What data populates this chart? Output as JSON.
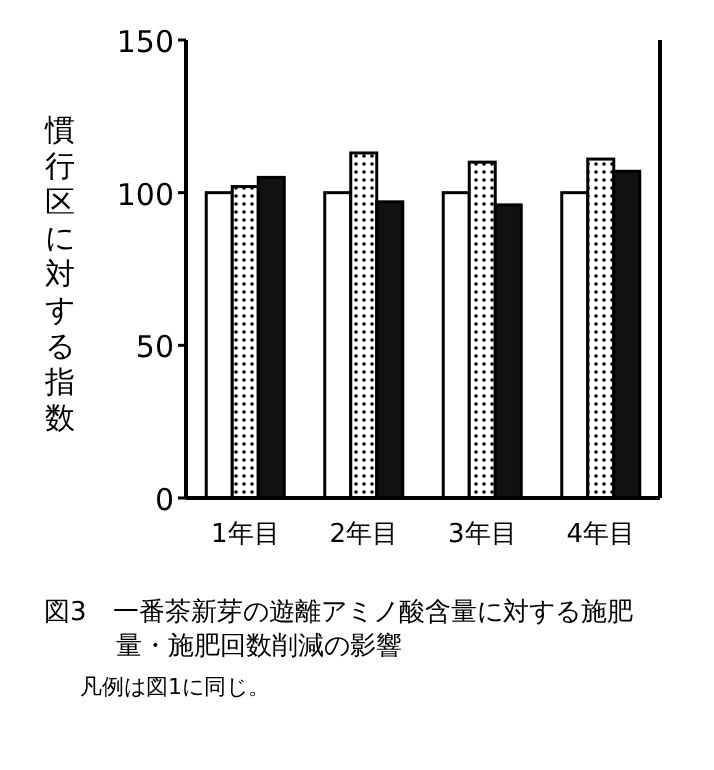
{
  "chart_data": {
    "type": "bar",
    "title": "図3　一番茶新芽の遊離アミノ酸含量に対する施肥量・施肥回数削減の影響",
    "ylabel": "慣行区に対する指数",
    "categories": [
      "1年目",
      "2年目",
      "3年目",
      "4年目"
    ],
    "series": [
      {
        "color": "#ffffff",
        "values": [
          100,
          100,
          100,
          100
        ]
      },
      {
        "color": "#000000",
        "values": [
          102,
          113,
          110,
          111
        ]
      },
      {
        "color": "#111111",
        "values": [
          105,
          97,
          96,
          107
        ]
      }
    ],
    "ylim": [
      0,
      150
    ],
    "yticks": [
      0,
      50,
      100,
      150
    ],
    "grid": false,
    "annotations": [
      "凡例は図1に同じ。"
    ]
  }
}
